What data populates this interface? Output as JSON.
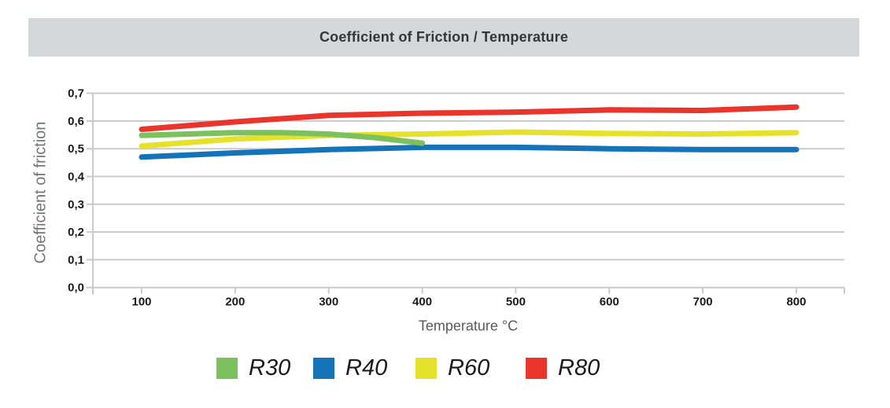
{
  "title": "Coefficient of Friction / Temperature",
  "colors": {
    "title_bar_bg": "#d6d7d8",
    "title_text": "#363636",
    "grid": "#c9cacb",
    "tick_text": "#1a1a1a",
    "axis_title_text": "#6b6d70"
  },
  "chart_data": {
    "type": "line",
    "title": "Coefficient of Friction / Temperature",
    "xlabel": "Temperature °C",
    "ylabel": "Coefficient of friction",
    "x_ticks": [
      100,
      200,
      300,
      400,
      500,
      600,
      700,
      800
    ],
    "y_ticks": [
      "0,0",
      "0,1",
      "0,2",
      "0,3",
      "0,4",
      "0,5",
      "0,6",
      "0,7"
    ],
    "y_tick_values": [
      0.0,
      0.1,
      0.2,
      0.3,
      0.4,
      0.5,
      0.6,
      0.7
    ],
    "xlim": [
      45,
      850
    ],
    "ylim": [
      0.0,
      0.7
    ],
    "grid": "horizontal",
    "legend_position": "bottom",
    "series": [
      {
        "name": "R30",
        "color": "#7cc15e",
        "points": [
          [
            100,
            0.548
          ],
          [
            200,
            0.558
          ],
          [
            250,
            0.558
          ],
          [
            300,
            0.553
          ],
          [
            350,
            0.54
          ],
          [
            400,
            0.52
          ]
        ]
      },
      {
        "name": "R40",
        "color": "#1573b9",
        "points": [
          [
            100,
            0.47
          ],
          [
            200,
            0.485
          ],
          [
            300,
            0.497
          ],
          [
            400,
            0.505
          ],
          [
            500,
            0.505
          ],
          [
            600,
            0.5
          ],
          [
            700,
            0.497
          ],
          [
            800,
            0.497
          ]
        ]
      },
      {
        "name": "R60",
        "color": "#e6e22c",
        "points": [
          [
            100,
            0.51
          ],
          [
            200,
            0.535
          ],
          [
            300,
            0.548
          ],
          [
            400,
            0.553
          ],
          [
            500,
            0.56
          ],
          [
            600,
            0.555
          ],
          [
            700,
            0.553
          ],
          [
            800,
            0.558
          ]
        ]
      },
      {
        "name": "R80",
        "color": "#e9352c",
        "points": [
          [
            100,
            0.57
          ],
          [
            200,
            0.597
          ],
          [
            300,
            0.62
          ],
          [
            400,
            0.628
          ],
          [
            500,
            0.632
          ],
          [
            600,
            0.64
          ],
          [
            700,
            0.638
          ],
          [
            800,
            0.65
          ]
        ]
      }
    ]
  }
}
